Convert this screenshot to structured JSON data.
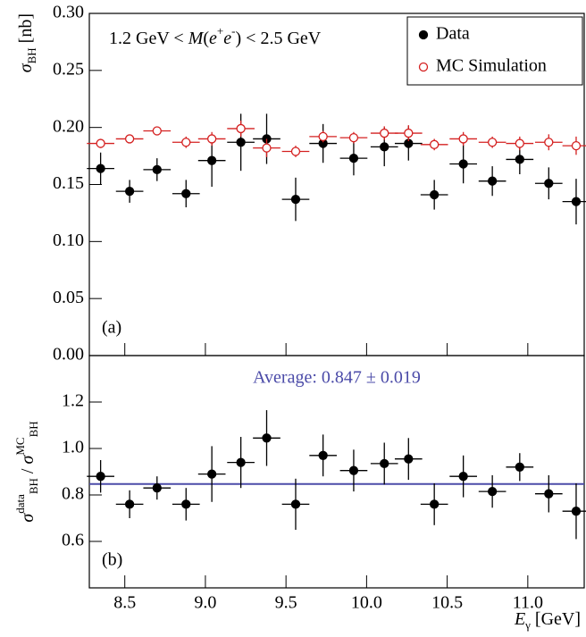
{
  "chart_data": [
    {
      "type": "scatter",
      "y_label": [
        {
          "text": "σ",
          "style": "italic"
        },
        {
          "text": "BH",
          "style": "sub"
        },
        {
          "text": " [nb]",
          "style": "normal"
        }
      ],
      "annotation": [
        {
          "text": "1.2 GeV < ",
          "style": "normal"
        },
        {
          "text": "M",
          "style": "italic"
        },
        {
          "text": "(",
          "style": "normal"
        },
        {
          "text": "e",
          "style": "italic"
        },
        {
          "text": "+",
          "style": "sup"
        },
        {
          "text": "e",
          "style": "italic"
        },
        {
          "text": "-",
          "style": "sup"
        },
        {
          "text": ") < 2.5 GeV",
          "style": "normal"
        }
      ],
      "panel_label": "(a)",
      "xlim": [
        8.28,
        11.35
      ],
      "xticks": [
        8.5,
        9,
        9.5,
        10,
        10.5,
        11
      ],
      "ylim": [
        0,
        0.3
      ],
      "yticks": [
        {
          "value": 0,
          "label": "0.00"
        },
        {
          "value": 0.05,
          "label": "0.05"
        },
        {
          "value": 0.1,
          "label": "0.10"
        },
        {
          "value": 0.15,
          "label": "0.15"
        },
        {
          "value": 0.2,
          "label": "0.20"
        },
        {
          "value": 0.25,
          "label": "0.25"
        },
        {
          "value": 0.3,
          "label": "0.30"
        }
      ],
      "legend": "upper right",
      "x": [
        8.35,
        8.53,
        8.7,
        8.88,
        9.04,
        9.22,
        9.38,
        9.56,
        9.73,
        9.92,
        10.11,
        10.26,
        10.42,
        10.6,
        10.78,
        10.95,
        11.13,
        11.3
      ],
      "xerr": 0.085,
      "series": [
        {
          "name": "Data",
          "color": "#000000",
          "marker": "filled",
          "values": [
            0.164,
            0.144,
            0.163,
            0.142,
            0.171,
            0.187,
            0.19,
            0.137,
            0.186,
            0.173,
            0.183,
            0.186,
            0.141,
            0.168,
            0.153,
            0.172,
            0.151,
            0.135
          ],
          "yerr": [
            0.014,
            0.01,
            0.01,
            0.012,
            0.023,
            0.025,
            0.022,
            0.019,
            0.017,
            0.015,
            0.017,
            0.015,
            0.013,
            0.017,
            0.013,
            0.013,
            0.014,
            0.02
          ]
        },
        {
          "name": "MC Simulation",
          "color": "#d42020",
          "marker": "open",
          "values": [
            0.186,
            0.19,
            0.197,
            0.187,
            0.19,
            0.199,
            0.182,
            0.179,
            0.192,
            0.191,
            0.195,
            0.195,
            0.185,
            0.19,
            0.187,
            0.186,
            0.187,
            0.184
          ],
          "yerr": [
            0.004,
            0.003,
            0.003,
            0.005,
            0.006,
            0.007,
            0.008,
            0.005,
            0.005,
            0.005,
            0.006,
            0.007,
            0.005,
            0.006,
            0.005,
            0.006,
            0.007,
            0.008
          ]
        }
      ]
    },
    {
      "type": "ratio",
      "y_label": [
        {
          "text": "σ",
          "style": "italic"
        },
        {
          "text": "data",
          "style": "sup"
        },
        {
          "text": "BH",
          "style": "sub"
        },
        {
          "text": " / ",
          "style": "normal"
        },
        {
          "text": "σ",
          "style": "italic"
        },
        {
          "text": "MC",
          "style": "sup"
        },
        {
          "text": "BH",
          "style": "sub"
        }
      ],
      "x_label": [
        {
          "text": "E",
          "style": "italic"
        },
        {
          "text": "γ",
          "style": "sub"
        },
        {
          "text": " [GeV]",
          "style": "normal"
        }
      ],
      "panel_label": "(b)",
      "average_label": "Average: 0.847 ± 0.019",
      "average": 0.847,
      "average_color": "#4b4ba8",
      "xlim": [
        8.28,
        11.35
      ],
      "xticks": [
        8.5,
        {
          "value": 9,
          "label": "9.0"
        },
        9.5,
        {
          "value": 10,
          "label": "10.0"
        },
        10.5,
        {
          "value": 11,
          "label": "11.0"
        }
      ],
      "ylim": [
        0.4,
        1.4
      ],
      "yticks": [
        0.6,
        0.8,
        {
          "value": 1,
          "label": "1.0"
        },
        1.2
      ],
      "x": [
        8.35,
        8.53,
        8.7,
        8.88,
        9.04,
        9.22,
        9.38,
        9.56,
        9.73,
        9.92,
        10.11,
        10.26,
        10.42,
        10.6,
        10.78,
        10.95,
        11.13,
        11.3
      ],
      "xerr": 0.085,
      "color": "#000000",
      "values": [
        0.88,
        0.76,
        0.83,
        0.76,
        0.89,
        0.94,
        1.045,
        0.76,
        0.97,
        0.905,
        0.935,
        0.955,
        0.76,
        0.88,
        0.815,
        0.92,
        0.805,
        0.73
      ],
      "yerr": [
        0.07,
        0.06,
        0.05,
        0.07,
        0.12,
        0.11,
        0.12,
        0.11,
        0.09,
        0.09,
        0.09,
        0.09,
        0.09,
        0.09,
        0.07,
        0.06,
        0.08,
        0.12
      ]
    }
  ]
}
